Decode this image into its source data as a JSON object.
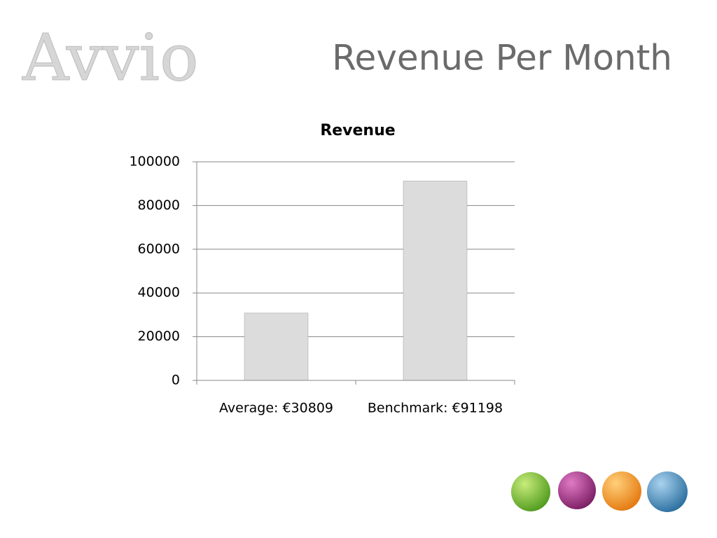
{
  "logo": "Avvio",
  "slide_title": "Revenue Per Month",
  "chart_data": {
    "type": "bar",
    "title": "Revenue",
    "categories": [
      "Average: €30809",
      "Benchmark: €91198"
    ],
    "values": [
      30809,
      91198
    ],
    "color": "#dcdcdc",
    "ylim": [
      0,
      100000
    ],
    "yticks": [
      0,
      20000,
      40000,
      60000,
      80000,
      100000
    ],
    "grid": true
  }
}
